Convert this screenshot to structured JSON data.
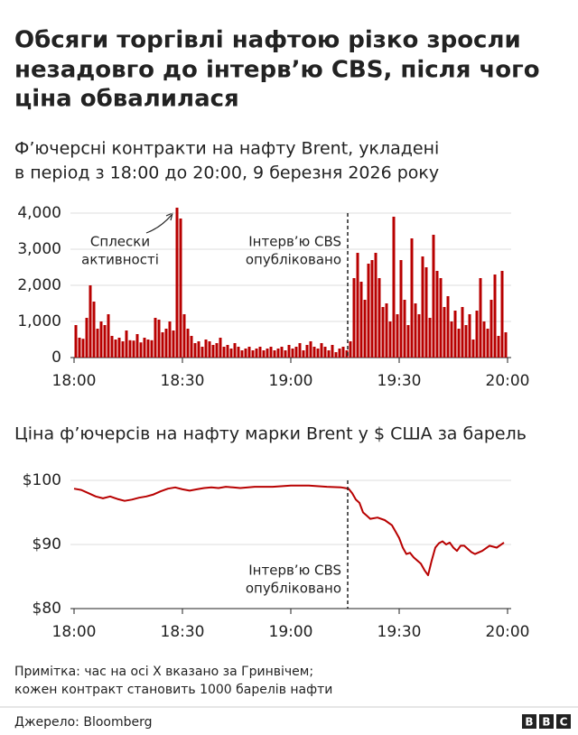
{
  "title": [
    "Обсяги торгівлі нафтою різко зросли",
    "незадовго до інтерв’ю CBS, після чого",
    "ціна обвалилася"
  ],
  "note": [
    "Примітка: час на осі X вказано за Гринвічем;",
    "кожен контракт становить 1000 барелів нафти"
  ],
  "source": "Джерело: Bloomberg",
  "logo": [
    "B",
    "B",
    "C"
  ],
  "chart_data": [
    {
      "type": "bar",
      "subtitle": [
        "Ф’ючерсні контракти на нафту Brent, укладені",
        "в період з 18:00 до 20:00, 9 березня 2026 року"
      ],
      "color": "#b80000",
      "x": [
        0,
        1,
        2,
        3,
        4,
        5,
        6,
        7,
        8,
        9,
        10,
        11,
        12,
        13,
        14,
        15,
        16,
        17,
        18,
        19,
        20,
        21,
        22,
        23,
        24,
        25,
        26,
        27,
        28,
        29,
        30,
        31,
        32,
        33,
        34,
        35,
        36,
        37,
        38,
        39,
        40,
        41,
        42,
        43,
        44,
        45,
        46,
        47,
        48,
        49,
        50,
        51,
        52,
        53,
        54,
        55,
        56,
        57,
        58,
        59,
        60,
        61,
        62,
        63,
        64,
        65,
        66,
        67,
        68,
        69,
        70,
        71,
        72,
        73,
        74,
        75,
        76,
        77,
        78,
        79,
        80,
        81,
        82,
        83,
        84,
        85,
        86,
        87,
        88,
        89,
        90,
        91,
        92,
        93,
        94,
        95,
        96,
        97,
        98,
        99,
        100,
        101,
        102,
        103,
        104,
        105,
        106,
        107,
        108,
        109,
        110,
        111,
        112,
        113,
        114,
        115,
        116,
        117,
        118,
        119
      ],
      "values": [
        900,
        550,
        520,
        1100,
        2000,
        1550,
        800,
        1000,
        900,
        1200,
        600,
        500,
        550,
        450,
        750,
        480,
        470,
        650,
        420,
        550,
        500,
        480,
        1100,
        1050,
        700,
        800,
        1000,
        750,
        4150,
        3850,
        1200,
        800,
        600,
        400,
        450,
        300,
        500,
        450,
        350,
        400,
        550,
        300,
        350,
        250,
        400,
        300,
        200,
        250,
        300,
        200,
        250,
        300,
        200,
        250,
        300,
        200,
        250,
        300,
        200,
        350,
        250,
        300,
        400,
        200,
        350,
        450,
        300,
        250,
        400,
        300,
        200,
        350,
        150,
        250,
        300,
        200,
        450,
        2200,
        2900,
        2100,
        1600,
        2600,
        2700,
        2900,
        2200,
        1400,
        1500,
        1000,
        3900,
        1200,
        2700,
        1600,
        900,
        3300,
        1500,
        1200,
        2800,
        2500,
        1100,
        3400,
        2400,
        2200,
        1400,
        1700,
        1000,
        1300,
        800,
        1400,
        900,
        1200,
        500,
        1300,
        2200,
        1000,
        800,
        1600,
        2300,
        600,
        2400,
        700
      ],
      "xlim": [
        0,
        120
      ],
      "xticks": [
        {
          "value": 0,
          "label": "18:00"
        },
        {
          "value": 30,
          "label": "18:30"
        },
        {
          "value": 60,
          "label": "19:00"
        },
        {
          "value": 90,
          "label": "19:30"
        },
        {
          "value": 120,
          "label": "20:00"
        }
      ],
      "ylim": [
        0,
        4000
      ],
      "yticks": [
        0,
        {
          "value": 1000,
          "label": "1,000"
        },
        {
          "value": 2000,
          "label": "2,000"
        },
        {
          "value": 3000,
          "label": "3,000"
        },
        {
          "value": 4000,
          "label": "4,000"
        }
      ],
      "grid": true,
      "annotations": [
        {
          "text": [
            "Сплески",
            "активності"
          ]
        },
        {
          "text": [
            "Інтерв’ю CBS",
            "опубліковано"
          ],
          "x": 75.75
        }
      ]
    },
    {
      "type": "line",
      "subtitle": [
        "Ціна ф’ючерсів на нафту марки Brent у $ США за барель"
      ],
      "color": "#b80000",
      "x": [
        0,
        2,
        4,
        6,
        8,
        10,
        12,
        14,
        16,
        18,
        20,
        22,
        24,
        26,
        28,
        30,
        32,
        34,
        36,
        38,
        40,
        42,
        44,
        46,
        50,
        55,
        60,
        65,
        70,
        74,
        76,
        77,
        78,
        79,
        80,
        81,
        82,
        84,
        86,
        88,
        89,
        90,
        91,
        92,
        93,
        94,
        95,
        96,
        97,
        98,
        99,
        100,
        101,
        102,
        103,
        104,
        105,
        106,
        107,
        108,
        110,
        111,
        113,
        115,
        117,
        119
      ],
      "values": [
        98.7,
        98.5,
        98.0,
        97.5,
        97.2,
        97.5,
        97.1,
        96.8,
        97.0,
        97.3,
        97.5,
        97.8,
        98.3,
        98.7,
        98.9,
        98.6,
        98.4,
        98.6,
        98.8,
        98.9,
        98.8,
        99.0,
        98.9,
        98.8,
        99.0,
        99.0,
        99.2,
        99.2,
        99.0,
        98.9,
        98.7,
        98.0,
        97.0,
        96.5,
        95.0,
        94.5,
        94.0,
        94.2,
        93.8,
        93.0,
        92.0,
        91.0,
        89.5,
        88.5,
        88.7,
        88.0,
        87.5,
        87.0,
        86.0,
        85.2,
        87.5,
        89.5,
        90.2,
        90.5,
        90.0,
        90.3,
        89.5,
        89.0,
        89.8,
        89.8,
        88.8,
        88.5,
        89.0,
        89.8,
        89.5,
        90.3
      ],
      "xlim": [
        0,
        120
      ],
      "xticks": [
        {
          "value": 0,
          "label": "18:00"
        },
        {
          "value": 30,
          "label": "18:30"
        },
        {
          "value": 60,
          "label": "19:00"
        },
        {
          "value": 90,
          "label": "19:30"
        },
        {
          "value": 120,
          "label": "20:00"
        }
      ],
      "ylim": [
        80,
        100
      ],
      "yticks": [
        {
          "value": 80,
          "label": "$80"
        },
        {
          "value": 90,
          "label": "$90"
        },
        {
          "value": 100,
          "label": "$100"
        }
      ],
      "grid": true,
      "annotations": [
        {
          "text": [
            "Інтерв’ю CBS",
            "опубліковано"
          ],
          "x": 75.75
        }
      ]
    }
  ]
}
